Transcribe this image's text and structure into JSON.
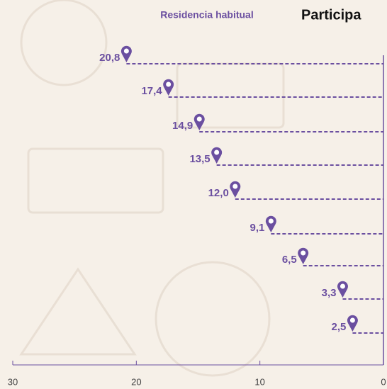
{
  "chart_data": {
    "type": "lollipop",
    "title": "Participa",
    "subtitle": "Residencia habitual",
    "values": [
      20.8,
      17.4,
      14.9,
      13.5,
      12.0,
      9.1,
      6.5,
      3.3,
      2.5
    ],
    "value_labels": [
      "20,8",
      "17,4",
      "14,9",
      "13,5",
      "12,0",
      "9,1",
      "6,5",
      "3,3",
      "2,5"
    ],
    "color": "#6b4fa0",
    "xlim": [
      30,
      0
    ],
    "xticks": [
      30,
      20,
      10,
      0
    ]
  }
}
